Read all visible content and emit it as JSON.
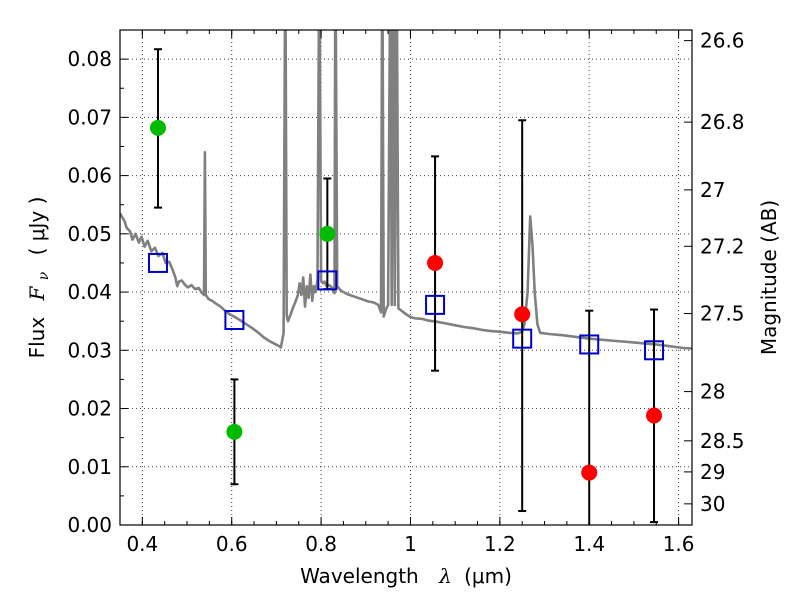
{
  "chart_data": {
    "type": "scatter",
    "xlabel": "Wavelength",
    "xlabel_symbol": "λ",
    "xlabel_unit": "(μm)",
    "ylabel": "Flux",
    "ylabel_symbol": "F",
    "ylabel_symbol_sub": "ν",
    "ylabel_unit": "( μJy )",
    "y2label": "Magnitude (AB)",
    "xlim": [
      0.35,
      1.63
    ],
    "ylim": [
      0.0,
      0.085
    ],
    "grid": true,
    "x_ticks": [
      {
        "v": 0.4,
        "label": "0.4"
      },
      {
        "v": 0.6,
        "label": "0.6"
      },
      {
        "v": 0.8,
        "label": "0.8"
      },
      {
        "v": 1.0,
        "label": "1"
      },
      {
        "v": 1.2,
        "label": "1.2"
      },
      {
        "v": 1.4,
        "label": "1.4"
      },
      {
        "v": 1.6,
        "label": "1.6"
      }
    ],
    "y_ticks": [
      {
        "v": 0.0,
        "label": "0.00"
      },
      {
        "v": 0.01,
        "label": "0.01"
      },
      {
        "v": 0.02,
        "label": "0.02"
      },
      {
        "v": 0.03,
        "label": "0.03"
      },
      {
        "v": 0.04,
        "label": "0.04"
      },
      {
        "v": 0.05,
        "label": "0.05"
      },
      {
        "v": 0.06,
        "label": "0.06"
      },
      {
        "v": 0.07,
        "label": "0.07"
      },
      {
        "v": 0.08,
        "label": "0.08"
      }
    ],
    "y2_ticks": [
      {
        "mag": 26.6,
        "label": "26.6"
      },
      {
        "mag": 26.8,
        "label": "26.8"
      },
      {
        "mag": 27.0,
        "label": "27"
      },
      {
        "mag": 27.2,
        "label": "27.2"
      },
      {
        "mag": 27.5,
        "label": "27.5"
      },
      {
        "mag": 28.0,
        "label": "28"
      },
      {
        "mag": 28.5,
        "label": "28.5"
      },
      {
        "mag": 29.0,
        "label": "29"
      },
      {
        "mag": 30.0,
        "label": "30"
      }
    ],
    "series": [
      {
        "marker": "circle",
        "color": "#00bb00",
        "points": [
          {
            "x": 0.435,
            "y": 0.0682,
            "ylo": 0.0545,
            "yhi": 0.0817
          },
          {
            "x": 0.606,
            "y": 0.016,
            "ylo": 0.007,
            "yhi": 0.025
          },
          {
            "x": 0.814,
            "y": 0.05,
            "ylo": 0.0405,
            "yhi": 0.0595
          }
        ]
      },
      {
        "marker": "circle",
        "color": "#ff0000",
        "points": [
          {
            "x": 1.055,
            "y": 0.045,
            "ylo": 0.0265,
            "yhi": 0.0633
          },
          {
            "x": 1.25,
            "y": 0.0362,
            "ylo": 0.0024,
            "yhi": 0.0695
          },
          {
            "x": 1.4,
            "y": 0.009,
            "ylo": -0.001,
            "yhi": 0.0368
          },
          {
            "x": 1.545,
            "y": 0.0188,
            "ylo": 0.0005,
            "yhi": 0.037
          }
        ]
      },
      {
        "marker": "square",
        "color": "#0000cc",
        "points": [
          {
            "x": 0.435,
            "y": 0.045
          },
          {
            "x": 0.606,
            "y": 0.0352
          },
          {
            "x": 0.814,
            "y": 0.042
          },
          {
            "x": 1.055,
            "y": 0.0378
          },
          {
            "x": 1.25,
            "y": 0.032
          },
          {
            "x": 1.4,
            "y": 0.031
          },
          {
            "x": 1.545,
            "y": 0.03
          }
        ]
      }
    ],
    "model_spectrum": {
      "color": "#808080",
      "points": [
        [
          0.35,
          0.0535
        ],
        [
          0.36,
          0.0522
        ],
        [
          0.365,
          0.051
        ],
        [
          0.372,
          0.0505
        ],
        [
          0.378,
          0.049
        ],
        [
          0.385,
          0.05
        ],
        [
          0.392,
          0.0485
        ],
        [
          0.398,
          0.0495
        ],
        [
          0.405,
          0.0478
        ],
        [
          0.412,
          0.0488
        ],
        [
          0.42,
          0.047
        ],
        [
          0.428,
          0.0476
        ],
        [
          0.436,
          0.0462
        ],
        [
          0.445,
          0.0467
        ],
        [
          0.452,
          0.045
        ],
        [
          0.46,
          0.0452
        ],
        [
          0.468,
          0.0438
        ],
        [
          0.474,
          0.0425
        ],
        [
          0.478,
          0.041
        ],
        [
          0.482,
          0.0418
        ],
        [
          0.488,
          0.042
        ],
        [
          0.495,
          0.0413
        ],
        [
          0.502,
          0.0408
        ],
        [
          0.51,
          0.0412
        ],
        [
          0.518,
          0.0405
        ],
        [
          0.526,
          0.0407
        ],
        [
          0.532,
          0.04
        ],
        [
          0.538,
          0.0395
        ],
        [
          0.54,
          0.064
        ],
        [
          0.542,
          0.0395
        ],
        [
          0.548,
          0.0388
        ],
        [
          0.556,
          0.0385
        ],
        [
          0.565,
          0.038
        ],
        [
          0.575,
          0.0375
        ],
        [
          0.585,
          0.0368
        ],
        [
          0.595,
          0.0362
        ],
        [
          0.605,
          0.0358
        ],
        [
          0.618,
          0.0352
        ],
        [
          0.632,
          0.0345
        ],
        [
          0.646,
          0.0338
        ],
        [
          0.66,
          0.033
        ],
        [
          0.672,
          0.0322
        ],
        [
          0.684,
          0.0316
        ],
        [
          0.694,
          0.0312
        ],
        [
          0.704,
          0.0308
        ],
        [
          0.71,
          0.0305
        ],
        [
          0.716,
          0.033
        ],
        [
          0.72,
          0.1
        ],
        [
          0.723,
          0.036
        ],
        [
          0.726,
          0.035
        ],
        [
          0.732,
          0.0362
        ],
        [
          0.738,
          0.0375
        ],
        [
          0.742,
          0.0382
        ],
        [
          0.748,
          0.0395
        ],
        [
          0.752,
          0.0415
        ],
        [
          0.756,
          0.0395
        ],
        [
          0.76,
          0.0425
        ],
        [
          0.764,
          0.0375
        ],
        [
          0.768,
          0.041
        ],
        [
          0.772,
          0.039
        ],
        [
          0.776,
          0.043
        ],
        [
          0.78,
          0.0385
        ],
        [
          0.784,
          0.041
        ],
        [
          0.788,
          0.04
        ],
        [
          0.792,
          0.0422
        ],
        [
          0.796,
          0.1
        ],
        [
          0.8,
          0.042
        ],
        [
          0.804,
          0.0415
        ],
        [
          0.808,
          0.0418
        ],
        [
          0.812,
          0.041
        ],
        [
          0.818,
          0.0412
        ],
        [
          0.824,
          0.0408
        ],
        [
          0.83,
          0.0398
        ],
        [
          0.832,
          0.1
        ],
        [
          0.836,
          0.041
        ],
        [
          0.845,
          0.0402
        ],
        [
          0.86,
          0.0396
        ],
        [
          0.875,
          0.0392
        ],
        [
          0.89,
          0.0388
        ],
        [
          0.905,
          0.0384
        ],
        [
          0.918,
          0.0382
        ],
        [
          0.928,
          0.0378
        ],
        [
          0.934,
          0.0365
        ],
        [
          0.937,
          0.1
        ],
        [
          0.94,
          0.0358
        ],
        [
          0.945,
          0.037
        ],
        [
          0.95,
          0.0378
        ],
        [
          0.955,
          0.1
        ],
        [
          0.958,
          0.0378
        ],
        [
          0.962,
          0.1
        ],
        [
          0.965,
          0.0378
        ],
        [
          0.969,
          0.1
        ],
        [
          0.973,
          0.0372
        ],
        [
          0.98,
          0.0368
        ],
        [
          0.99,
          0.0362
        ],
        [
          1.0,
          0.0357
        ],
        [
          1.01,
          0.0355
        ],
        [
          1.025,
          0.0354
        ],
        [
          1.04,
          0.0351
        ],
        [
          1.06,
          0.0349
        ],
        [
          1.08,
          0.0346
        ],
        [
          1.1,
          0.0343
        ],
        [
          1.12,
          0.034
        ],
        [
          1.14,
          0.0338
        ],
        [
          1.16,
          0.0335
        ],
        [
          1.18,
          0.0333
        ],
        [
          1.2,
          0.0332
        ],
        [
          1.22,
          0.033
        ],
        [
          1.24,
          0.0329
        ],
        [
          1.25,
          0.0332
        ],
        [
          1.255,
          0.0345
        ],
        [
          1.262,
          0.04
        ],
        [
          1.268,
          0.053
        ],
        [
          1.273,
          0.048
        ],
        [
          1.278,
          0.04
        ],
        [
          1.284,
          0.0345
        ],
        [
          1.29,
          0.033
        ],
        [
          1.31,
          0.0328
        ],
        [
          1.34,
          0.0326
        ],
        [
          1.37,
          0.0323
        ],
        [
          1.4,
          0.032
        ],
        [
          1.43,
          0.0318
        ],
        [
          1.46,
          0.0316
        ],
        [
          1.49,
          0.0314
        ],
        [
          1.52,
          0.0312
        ],
        [
          1.55,
          0.031
        ],
        [
          1.58,
          0.0307
        ],
        [
          1.61,
          0.0304
        ],
        [
          1.63,
          0.0303
        ]
      ]
    }
  }
}
